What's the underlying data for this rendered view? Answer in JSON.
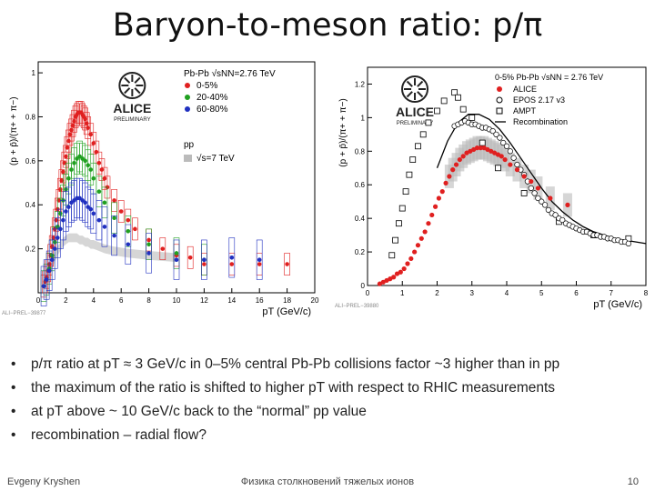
{
  "slide": {
    "title": "Baryon-to-meson ratio: p/π",
    "footer_left": "Evgeny Kryshen",
    "footer_center": "Физика столкновений тяжелых ионов",
    "page_number": "10"
  },
  "bullets": [
    "p/π ratio at pT ≈ 3 GeV/c in 0–5% central Pb-Pb collisions factor ~3 higher than in pp",
    "the maximum of the ratio is shifted to higher pT with respect to RHIC measurements",
    "at pT above ~ 10 GeV/c back to the “normal” pp value",
    "recombination – radial flow?"
  ],
  "colors": {
    "red": "#e02020",
    "green": "#20a020",
    "blue": "#2030c0",
    "black": "#000000",
    "grey_band": "#bbbbbb"
  },
  "chart_data": [
    {
      "type": "scatter",
      "logo": "ALICE",
      "logo_sub": "PRELIMINARY",
      "xlabel": "pT (GeV/c)",
      "ylabel": "(p + p̄)/(π+ + π−)",
      "xlim": [
        0,
        20
      ],
      "ylim": [
        0,
        1.05
      ],
      "xticks": [
        0,
        2,
        4,
        6,
        8,
        10,
        12,
        14,
        16,
        18,
        20
      ],
      "yticks": [
        0.2,
        0.4,
        0.6,
        0.8,
        1
      ],
      "corner_tag": "ALI−PREL−39877",
      "legend": {
        "header": "Pb-Pb √sNN=2.76 TeV",
        "entries": [
          "0-5%",
          "20-40%",
          "60-80%"
        ],
        "pp_header": "pp",
        "pp_entry": "√s=7 TeV"
      },
      "series": [
        {
          "name": "0-5%",
          "color": "#e02020",
          "x": [
            0.4,
            0.5,
            0.6,
            0.7,
            0.8,
            0.9,
            1.0,
            1.1,
            1.2,
            1.3,
            1.4,
            1.5,
            1.6,
            1.7,
            1.8,
            1.9,
            2.0,
            2.1,
            2.2,
            2.3,
            2.4,
            2.5,
            2.6,
            2.7,
            2.8,
            2.9,
            3.0,
            3.1,
            3.2,
            3.3,
            3.4,
            3.5,
            3.6,
            3.8,
            4.0,
            4.2,
            4.4,
            4.6,
            4.8,
            5.0,
            5.5,
            6.0,
            6.5,
            7.0,
            8.0,
            9.0,
            10.0,
            11.0,
            12.0,
            14.0,
            16.0,
            18.0
          ],
          "y": [
            0.03,
            0.05,
            0.07,
            0.1,
            0.13,
            0.17,
            0.21,
            0.25,
            0.29,
            0.33,
            0.38,
            0.42,
            0.47,
            0.51,
            0.55,
            0.59,
            0.62,
            0.66,
            0.69,
            0.72,
            0.74,
            0.76,
            0.78,
            0.8,
            0.81,
            0.82,
            0.82,
            0.82,
            0.81,
            0.8,
            0.79,
            0.77,
            0.75,
            0.72,
            0.68,
            0.64,
            0.59,
            0.56,
            0.52,
            0.48,
            0.42,
            0.37,
            0.33,
            0.29,
            0.24,
            0.2,
            0.17,
            0.16,
            0.13,
            0.13,
            0.13,
            0.13
          ]
        },
        {
          "name": "20-40%",
          "color": "#20a020",
          "x": [
            0.4,
            0.6,
            0.8,
            1.0,
            1.2,
            1.4,
            1.6,
            1.8,
            2.0,
            2.2,
            2.4,
            2.6,
            2.8,
            3.0,
            3.2,
            3.4,
            3.6,
            3.8,
            4.0,
            4.4,
            4.8,
            5.5,
            6.5,
            8.0,
            10.0,
            12.0
          ],
          "y": [
            0.03,
            0.06,
            0.11,
            0.17,
            0.23,
            0.3,
            0.36,
            0.42,
            0.47,
            0.52,
            0.56,
            0.59,
            0.61,
            0.62,
            0.61,
            0.6,
            0.58,
            0.56,
            0.52,
            0.46,
            0.41,
            0.34,
            0.28,
            0.22,
            0.18,
            0.15
          ]
        },
        {
          "name": "60-80%",
          "color": "#2030c0",
          "x": [
            0.4,
            0.6,
            0.8,
            1.0,
            1.2,
            1.4,
            1.6,
            1.8,
            2.0,
            2.2,
            2.4,
            2.6,
            2.8,
            3.0,
            3.2,
            3.4,
            3.6,
            3.8,
            4.0,
            4.4,
            4.8,
            5.5,
            6.5,
            8.0,
            10.0,
            12.0,
            14.0,
            16.0
          ],
          "y": [
            0.03,
            0.06,
            0.1,
            0.15,
            0.2,
            0.25,
            0.29,
            0.33,
            0.37,
            0.39,
            0.41,
            0.42,
            0.43,
            0.43,
            0.42,
            0.41,
            0.39,
            0.38,
            0.36,
            0.33,
            0.3,
            0.26,
            0.22,
            0.18,
            0.15,
            0.15,
            0.16,
            0.15
          ]
        },
        {
          "name": "pp √s=7 TeV",
          "color": "#e02020",
          "x": [
            0.4,
            0.6,
            0.8,
            1.0,
            1.2,
            1.4,
            1.6,
            1.8,
            2.0,
            2.2,
            2.4,
            2.6,
            2.8,
            3.0,
            3.2,
            3.4,
            3.6,
            3.8,
            4.0,
            4.4,
            4.8,
            5.5,
            6.5,
            8.0,
            10.0
          ],
          "y": [
            0.03,
            0.06,
            0.1,
            0.13,
            0.16,
            0.19,
            0.21,
            0.23,
            0.24,
            0.25,
            0.25,
            0.25,
            0.25,
            0.24,
            0.24,
            0.23,
            0.23,
            0.22,
            0.22,
            0.21,
            0.2,
            0.19,
            0.18,
            0.17,
            0.16
          ]
        }
      ]
    },
    {
      "type": "scatter",
      "logo": "ALICE",
      "logo_sub": "PRELIMINARY",
      "xlabel": "pT (GeV/c)",
      "ylabel": "(p + p̄)/(π+ + π−)",
      "xlim": [
        0,
        8
      ],
      "ylim": [
        0,
        1.3
      ],
      "xticks": [
        0,
        1,
        2,
        3,
        4,
        5,
        6,
        7,
        8
      ],
      "yticks": [
        0,
        0.2,
        0.4,
        0.6,
        0.8,
        1,
        1.2
      ],
      "corner_tag": "ALI−PREL−39880",
      "legend": {
        "header": "0-5% Pb-Pb √sNN = 2.76 TeV",
        "entries": [
          "ALICE",
          "EPOS 2.17 v3",
          "AMPT",
          "Recombination"
        ]
      },
      "series": [
        {
          "name": "ALICE",
          "color": "#e02020",
          "x": [
            0.35,
            0.45,
            0.55,
            0.65,
            0.75,
            0.85,
            0.95,
            1.05,
            1.15,
            1.25,
            1.35,
            1.45,
            1.55,
            1.65,
            1.75,
            1.85,
            1.95,
            2.05,
            2.15,
            2.25,
            2.35,
            2.45,
            2.55,
            2.65,
            2.75,
            2.85,
            2.95,
            3.05,
            3.15,
            3.25,
            3.35,
            3.45,
            3.55,
            3.65,
            3.75,
            3.85,
            3.95,
            4.1,
            4.3,
            4.5,
            4.7,
            4.9,
            5.25,
            5.75
          ],
          "y": [
            0.01,
            0.02,
            0.03,
            0.04,
            0.05,
            0.07,
            0.08,
            0.1,
            0.13,
            0.16,
            0.2,
            0.24,
            0.28,
            0.32,
            0.37,
            0.42,
            0.47,
            0.52,
            0.56,
            0.61,
            0.65,
            0.69,
            0.72,
            0.75,
            0.77,
            0.79,
            0.8,
            0.81,
            0.82,
            0.82,
            0.82,
            0.81,
            0.8,
            0.79,
            0.78,
            0.77,
            0.75,
            0.72,
            0.69,
            0.65,
            0.62,
            0.58,
            0.52,
            0.48
          ]
        },
        {
          "name": "EPOS 2.17 v3",
          "color": "#000000",
          "x": [
            2.5,
            2.6,
            2.7,
            2.8,
            2.9,
            3.0,
            3.1,
            3.2,
            3.3,
            3.4,
            3.5,
            3.6,
            3.7,
            3.8,
            3.9,
            4.0,
            4.1,
            4.2,
            4.3,
            4.4,
            4.5,
            4.6,
            4.7,
            4.8,
            4.9,
            5.0,
            5.1,
            5.2,
            5.3,
            5.4,
            5.5,
            5.6,
            5.7,
            5.8,
            5.9,
            6.0,
            6.1,
            6.2,
            6.3,
            6.4,
            6.5,
            6.6,
            6.7,
            6.8,
            6.9,
            7.0,
            7.1,
            7.2,
            7.3,
            7.4,
            7.5
          ],
          "y": [
            0.95,
            0.96,
            0.97,
            0.98,
            0.97,
            0.96,
            0.96,
            0.95,
            0.94,
            0.94,
            0.93,
            0.92,
            0.9,
            0.88,
            0.85,
            0.83,
            0.8,
            0.76,
            0.72,
            0.69,
            0.66,
            0.62,
            0.58,
            0.55,
            0.52,
            0.5,
            0.48,
            0.45,
            0.43,
            0.42,
            0.4,
            0.39,
            0.37,
            0.36,
            0.35,
            0.34,
            0.33,
            0.32,
            0.32,
            0.31,
            0.3,
            0.3,
            0.29,
            0.29,
            0.28,
            0.28,
            0.27,
            0.27,
            0.26,
            0.26,
            0.25
          ]
        },
        {
          "name": "AMPT",
          "color": "#000000",
          "x": [
            0.7,
            0.8,
            0.9,
            1.0,
            1.1,
            1.2,
            1.3,
            1.45,
            1.6,
            1.75,
            2.0,
            2.2,
            2.5,
            2.6,
            2.75,
            3.0,
            3.3,
            3.75,
            4.5,
            5.5,
            6.5,
            7.5
          ],
          "y": [
            0.18,
            0.27,
            0.37,
            0.46,
            0.56,
            0.66,
            0.75,
            0.83,
            0.9,
            0.97,
            1.04,
            1.1,
            1.15,
            1.12,
            1.05,
            1.0,
            0.85,
            0.7,
            0.55,
            0.38,
            0.3,
            0.28
          ]
        }
      ],
      "recombination_curve": {
        "x": [
          2.0,
          2.3,
          2.6,
          2.9,
          3.2,
          3.5,
          3.8,
          4.1,
          4.4,
          4.7,
          5.0,
          5.3,
          5.6,
          5.9,
          6.2,
          6.5,
          6.8,
          7.1,
          7.4,
          7.7,
          8.0
        ],
        "y": [
          0.7,
          0.86,
          0.97,
          1.02,
          1.02,
          0.99,
          0.93,
          0.85,
          0.76,
          0.67,
          0.58,
          0.5,
          0.44,
          0.39,
          0.35,
          0.32,
          0.3,
          0.28,
          0.27,
          0.26,
          0.25
        ]
      }
    }
  ]
}
